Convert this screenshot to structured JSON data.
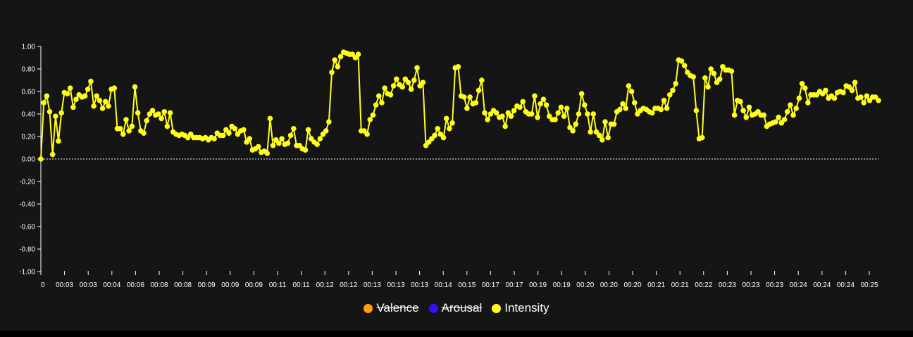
{
  "chart_data": {
    "type": "line",
    "title": "",
    "xlabel": "",
    "ylabel": "",
    "ylim": [
      -1,
      1
    ],
    "yticks": [
      "1.00",
      "0.80",
      "0.60",
      "0.40",
      "0.20",
      "0.00",
      "-0.20",
      "-0.40",
      "-0.60",
      "-0.80",
      "-1.00"
    ],
    "xticks": [
      "0",
      "00:03",
      "00:03",
      "00:04",
      "00:06",
      "00:08",
      "00:08",
      "00:09",
      "00:09",
      "00:09",
      "00:11",
      "00:11",
      "00:12",
      "00:12",
      "00:13",
      "00:13",
      "00:13",
      "00:14",
      "00:15",
      "00:17",
      "00:17",
      "00:19",
      "00:19",
      "00:20",
      "00:20",
      "00:20",
      "00:21",
      "00:21",
      "00:22",
      "00:23",
      "00:23",
      "00:23",
      "00:24",
      "00:24",
      "00:24",
      "00:25"
    ],
    "legend_position": "bottom-center",
    "legend": [
      {
        "name": "Valence",
        "color": "#ff9f0a",
        "hidden": true
      },
      {
        "name": "Arousal",
        "color": "#3d0bff",
        "hidden": true
      },
      {
        "name": "Intensity",
        "color": "#ffff19",
        "hidden": false
      }
    ],
    "series": [
      {
        "name": "Intensity",
        "color": "#ffff19",
        "values": [
          0.0,
          0.5,
          0.56,
          0.42,
          0.04,
          0.38,
          0.16,
          0.41,
          0.59,
          0.58,
          0.63,
          0.46,
          0.53,
          0.57,
          0.55,
          0.56,
          0.62,
          0.69,
          0.47,
          0.56,
          0.52,
          0.45,
          0.51,
          0.47,
          0.62,
          0.63,
          0.27,
          0.27,
          0.22,
          0.35,
          0.25,
          0.29,
          0.64,
          0.41,
          0.25,
          0.23,
          0.34,
          0.4,
          0.43,
          0.39,
          0.4,
          0.36,
          0.42,
          0.29,
          0.41,
          0.24,
          0.22,
          0.21,
          0.22,
          0.21,
          0.19,
          0.22,
          0.19,
          0.19,
          0.19,
          0.18,
          0.19,
          0.17,
          0.19,
          0.18,
          0.23,
          0.21,
          0.21,
          0.26,
          0.23,
          0.29,
          0.27,
          0.22,
          0.25,
          0.26,
          0.15,
          0.18,
          0.08,
          0.09,
          0.11,
          0.06,
          0.07,
          0.05,
          0.36,
          0.12,
          0.17,
          0.14,
          0.18,
          0.13,
          0.14,
          0.21,
          0.27,
          0.12,
          0.12,
          0.09,
          0.08,
          0.26,
          0.18,
          0.15,
          0.13,
          0.18,
          0.22,
          0.25,
          0.33,
          0.77,
          0.88,
          0.82,
          0.91,
          0.95,
          0.94,
          0.93,
          0.93,
          0.9,
          0.93,
          0.25,
          0.25,
          0.22,
          0.35,
          0.39,
          0.48,
          0.56,
          0.5,
          0.63,
          0.58,
          0.57,
          0.65,
          0.71,
          0.66,
          0.64,
          0.71,
          0.68,
          0.62,
          0.7,
          0.81,
          0.65,
          0.68,
          0.12,
          0.15,
          0.18,
          0.21,
          0.27,
          0.22,
          0.19,
          0.36,
          0.27,
          0.32,
          0.81,
          0.82,
          0.56,
          0.55,
          0.45,
          0.55,
          0.49,
          0.5,
          0.61,
          0.7,
          0.41,
          0.35,
          0.4,
          0.43,
          0.41,
          0.37,
          0.38,
          0.29,
          0.41,
          0.38,
          0.43,
          0.47,
          0.46,
          0.51,
          0.42,
          0.4,
          0.4,
          0.56,
          0.37,
          0.49,
          0.53,
          0.48,
          0.38,
          0.35,
          0.35,
          0.41,
          0.46,
          0.38,
          0.45,
          0.28,
          0.25,
          0.31,
          0.4,
          0.58,
          0.48,
          0.4,
          0.24,
          0.4,
          0.24,
          0.21,
          0.17,
          0.33,
          0.19,
          0.31,
          0.31,
          0.42,
          0.44,
          0.49,
          0.45,
          0.65,
          0.6,
          0.5,
          0.4,
          0.43,
          0.45,
          0.44,
          0.42,
          0.41,
          0.45,
          0.45,
          0.44,
          0.52,
          0.45,
          0.57,
          0.61,
          0.67,
          0.88,
          0.87,
          0.83,
          0.77,
          0.74,
          0.73,
          0.43,
          0.18,
          0.19,
          0.72,
          0.64,
          0.8,
          0.76,
          0.68,
          0.71,
          0.82,
          0.79,
          0.79,
          0.78,
          0.39,
          0.52,
          0.51,
          0.43,
          0.37,
          0.46,
          0.39,
          0.4,
          0.42,
          0.39,
          0.39,
          0.29,
          0.31,
          0.32,
          0.33,
          0.37,
          0.32,
          0.35,
          0.42,
          0.48,
          0.39,
          0.45,
          0.54,
          0.67,
          0.63,
          0.5,
          0.57,
          0.57,
          0.57,
          0.6,
          0.58,
          0.61,
          0.54,
          0.56,
          0.54,
          0.59,
          0.6,
          0.59,
          0.65,
          0.64,
          0.61,
          0.68,
          0.54,
          0.55,
          0.5,
          0.56,
          0.52,
          0.55,
          0.55,
          0.52
        ]
      }
    ]
  }
}
